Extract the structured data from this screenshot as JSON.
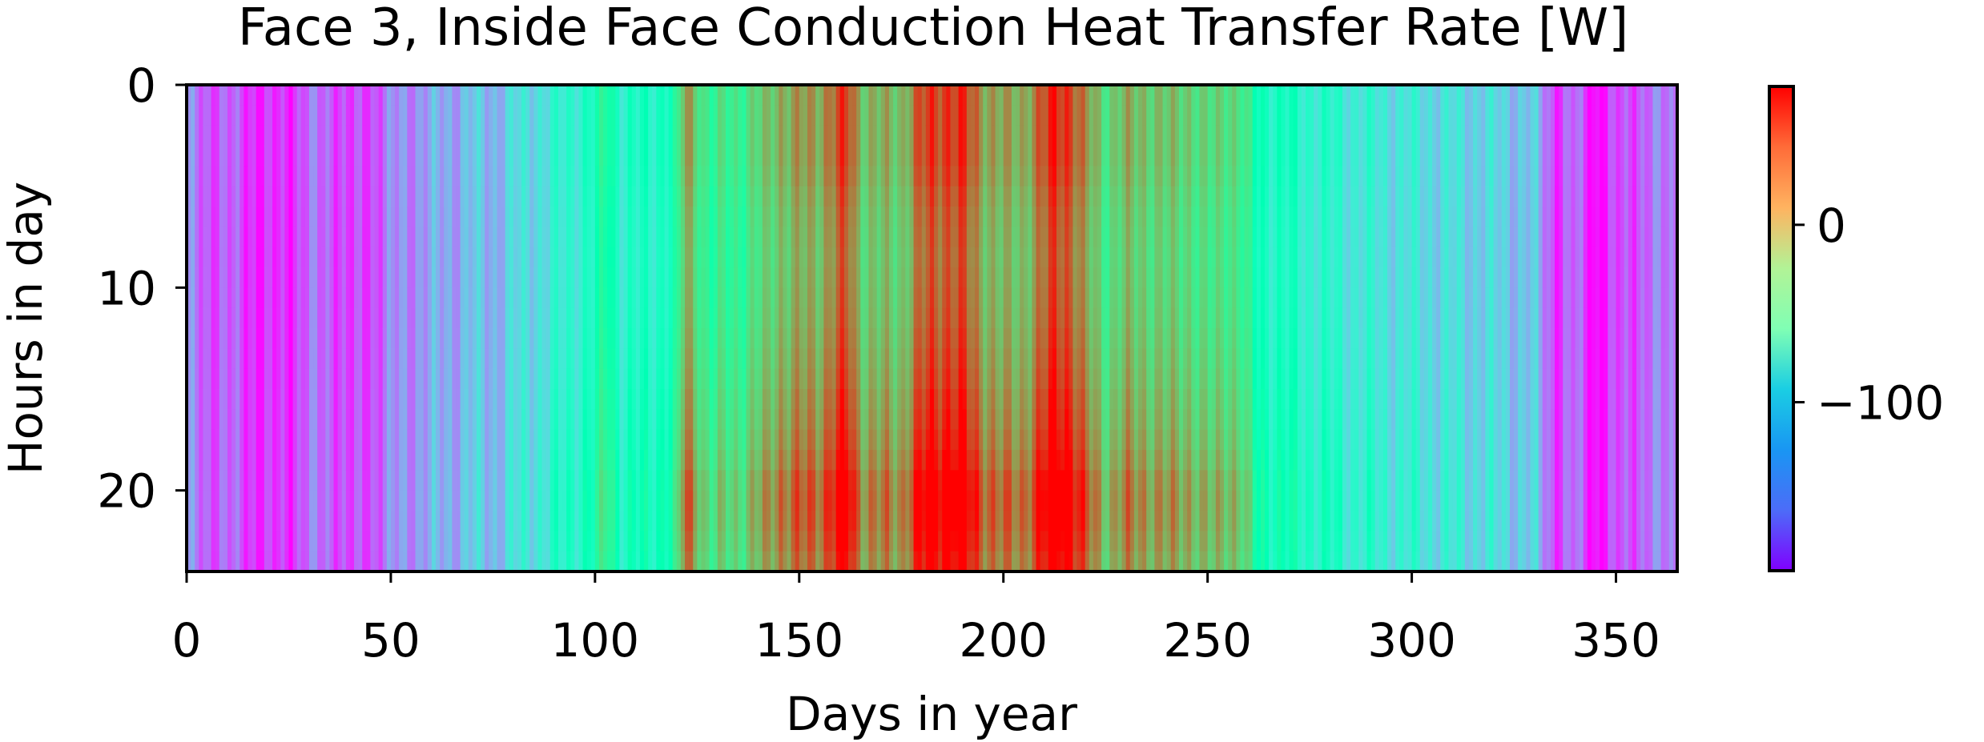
{
  "chart_data": {
    "type": "heatmap",
    "title": "Face 3, Inside Face Conduction Heat Transfer Rate [W]",
    "xlabel": "Days in year",
    "ylabel": "Hours in day",
    "colormap": "rainbow",
    "x_range": [
      0,
      365
    ],
    "y_range": [
      0,
      24
    ],
    "y_inverted": true,
    "xticks": [
      0,
      50,
      100,
      150,
      200,
      250,
      300,
      350
    ],
    "xtick_labels": [
      "0",
      "50",
      "100",
      "150",
      "200",
      "250",
      "300",
      "350"
    ],
    "yticks": [
      0,
      10,
      20
    ],
    "ytick_labels": [
      "0",
      "10",
      "20"
    ],
    "colorbar": {
      "vmin": -195,
      "vmax": 78,
      "ticks": [
        0,
        -100
      ],
      "tick_labels": [
        "0",
        "−100"
      ]
    },
    "day_profile_keypoints": [
      [
        0,
        -150
      ],
      [
        5,
        -160
      ],
      [
        10,
        -165
      ],
      [
        15,
        -170
      ],
      [
        20,
        -185
      ],
      [
        25,
        -175
      ],
      [
        30,
        -160
      ],
      [
        35,
        -155
      ],
      [
        40,
        -180
      ],
      [
        45,
        -165
      ],
      [
        50,
        -150
      ],
      [
        55,
        -140
      ],
      [
        60,
        -135
      ],
      [
        65,
        -130
      ],
      [
        70,
        -120
      ],
      [
        75,
        -125
      ],
      [
        80,
        -110
      ],
      [
        85,
        -100
      ],
      [
        90,
        -95
      ],
      [
        95,
        -80
      ],
      [
        100,
        -70
      ],
      [
        103,
        -30
      ],
      [
        106,
        -75
      ],
      [
        110,
        -80
      ],
      [
        115,
        -70
      ],
      [
        120,
        -55
      ],
      [
        122,
        25
      ],
      [
        125,
        5
      ],
      [
        128,
        -35
      ],
      [
        132,
        -25
      ],
      [
        138,
        -15
      ],
      [
        142,
        -5
      ],
      [
        145,
        20
      ],
      [
        150,
        15
      ],
      [
        155,
        25
      ],
      [
        158,
        40
      ],
      [
        162,
        55
      ],
      [
        165,
        15
      ],
      [
        170,
        5
      ],
      [
        175,
        10
      ],
      [
        178,
        35
      ],
      [
        182,
        55
      ],
      [
        186,
        65
      ],
      [
        190,
        55
      ],
      [
        195,
        30
      ],
      [
        200,
        10
      ],
      [
        205,
        20
      ],
      [
        210,
        45
      ],
      [
        213,
        70
      ],
      [
        216,
        65
      ],
      [
        220,
        20
      ],
      [
        225,
        -5
      ],
      [
        230,
        5
      ],
      [
        235,
        10
      ],
      [
        240,
        -5
      ],
      [
        245,
        5
      ],
      [
        250,
        -20
      ],
      [
        255,
        0
      ],
      [
        258,
        -15
      ],
      [
        262,
        -60
      ],
      [
        270,
        -75
      ],
      [
        280,
        -85
      ],
      [
        290,
        -95
      ],
      [
        300,
        -100
      ],
      [
        310,
        -105
      ],
      [
        320,
        -110
      ],
      [
        330,
        -120
      ],
      [
        335,
        -170
      ],
      [
        340,
        -160
      ],
      [
        345,
        -190
      ],
      [
        350,
        -175
      ],
      [
        355,
        -160
      ],
      [
        360,
        -155
      ],
      [
        365,
        -150
      ]
    ],
    "hour_profile": [
      0,
      0,
      0,
      0,
      -2,
      -5,
      -7,
      -8,
      -9,
      -8,
      -7,
      -6,
      -4,
      -2,
      0,
      3,
      5,
      8,
      12,
      18,
      20,
      19,
      16,
      12
    ]
  }
}
